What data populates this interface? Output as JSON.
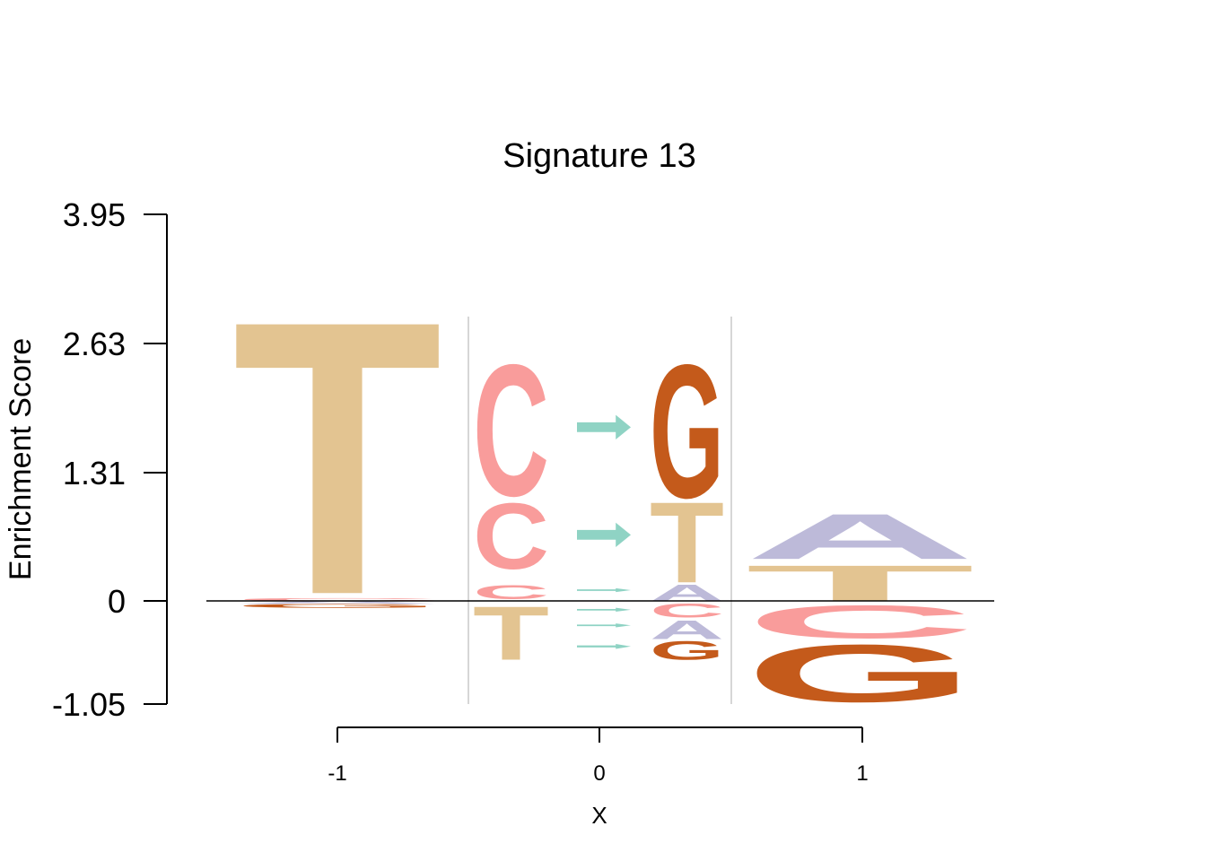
{
  "chart_data": {
    "type": "sequence-logo",
    "title": "Signature 13",
    "xlabel": "X",
    "ylabel": "Enrichment Score",
    "ylim": [
      -1.05,
      3.95
    ],
    "y_ticks": [
      "3.95",
      "2.63",
      "1.31",
      "0",
      "-1.05"
    ],
    "x_ticks": [
      "-1",
      "0",
      "1"
    ],
    "colors": {
      "A": "#bdbad9",
      "C": "#f99c9b",
      "G": "#c45a1b",
      "T": "#e3c491",
      "arrow": "#8fd3c4",
      "separator": "#c8c8c8"
    },
    "columns": [
      {
        "position": "-1",
        "stack": [
          {
            "letter": "T",
            "from": 0.08,
            "to": 2.99
          },
          {
            "letter": "C",
            "from": 0.0,
            "to": 0.03
          },
          {
            "letter": "A",
            "from": -0.03,
            "to": 0.0
          },
          {
            "letter": "G",
            "from": -0.07,
            "to": -0.03
          }
        ]
      },
      {
        "position": "ref",
        "stack": [
          {
            "letter": "C",
            "from": 1.08,
            "to": 2.48
          },
          {
            "letter": "C",
            "from": 0.33,
            "to": 1.03
          },
          {
            "letter": "C",
            "from": 0.02,
            "to": 0.17
          },
          {
            "letter": "T",
            "from": -0.6,
            "to": -0.03
          }
        ]
      },
      {
        "position": "arrow",
        "arrows": [
          {
            "from": 1.65,
            "to": 1.9
          },
          {
            "from": 0.55,
            "to": 0.8
          },
          {
            "from": 0.09,
            "to": 0.13
          },
          {
            "from": -0.11,
            "to": -0.07
          },
          {
            "from": -0.27,
            "to": -0.23
          },
          {
            "from": -0.49,
            "to": -0.44
          }
        ]
      },
      {
        "position": "alt",
        "stack": [
          {
            "letter": "G",
            "from": 1.06,
            "to": 2.48
          },
          {
            "letter": "T",
            "from": 0.19,
            "to": 1.05
          },
          {
            "letter": "A",
            "from": 0.0,
            "to": 0.17
          },
          {
            "letter": "C",
            "from": -0.17,
            "to": -0.02
          },
          {
            "letter": "A",
            "from": -0.39,
            "to": -0.19
          },
          {
            "letter": "G",
            "from": -0.6,
            "to": -0.4
          }
        ]
      },
      {
        "position": "1",
        "stack": [
          {
            "letter": "A",
            "from": 0.43,
            "to": 0.91
          },
          {
            "letter": "T",
            "from": 0.0,
            "to": 0.38
          },
          {
            "letter": "C",
            "from": -0.38,
            "to": -0.03
          },
          {
            "letter": "G",
            "from": -1.03,
            "to": -0.42
          }
        ]
      }
    ]
  }
}
